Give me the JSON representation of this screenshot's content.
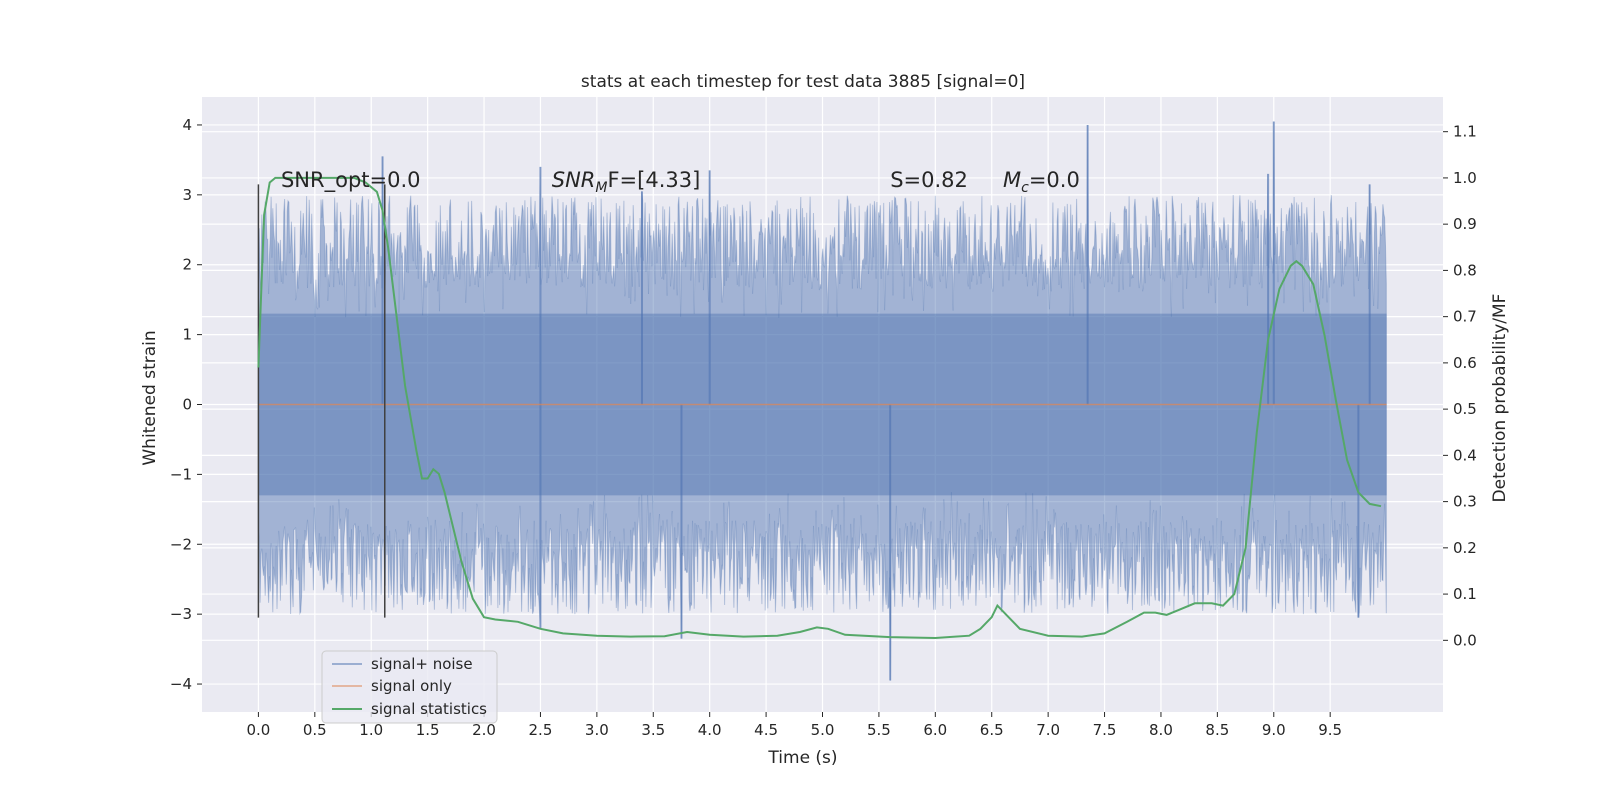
{
  "chart_data": {
    "type": "line",
    "title": "stats at each timestep for test data 3885 [signal=0]",
    "xlabel": "Time (s)",
    "ylabel": "Whitened strain",
    "y2label": "Detection probability/MF",
    "xlim": [
      -0.5,
      10.5
    ],
    "ylim": [
      -4.4,
      4.4
    ],
    "y2lim": [
      -0.155,
      1.175
    ],
    "x_ticks": [
      0.0,
      0.5,
      1.0,
      1.5,
      2.0,
      2.5,
      3.0,
      3.5,
      4.0,
      4.5,
      5.0,
      5.5,
      6.0,
      6.5,
      7.0,
      7.5,
      8.0,
      8.5,
      9.0,
      9.5
    ],
    "x_tick_labels": [
      "0.0",
      "0.5",
      "1.0",
      "1.5",
      "2.0",
      "2.5",
      "3.0",
      "3.5",
      "4.0",
      "4.5",
      "5.0",
      "5.5",
      "6.0",
      "6.5",
      "7.0",
      "7.5",
      "8.0",
      "8.5",
      "9.0",
      "9.5"
    ],
    "y_ticks": [
      -4,
      -3,
      -2,
      -1,
      0,
      1,
      2,
      3,
      4
    ],
    "y_tick_labels": [
      "−4",
      "−3",
      "−2",
      "−1",
      "0",
      "1",
      "2",
      "3",
      "4"
    ],
    "y2_ticks": [
      0.0,
      0.1,
      0.2,
      0.3,
      0.4,
      0.5,
      0.6,
      0.7,
      0.8,
      0.9,
      1.0,
      1.1
    ],
    "y2_tick_labels": [
      "0.0",
      "0.1",
      "0.2",
      "0.3",
      "0.4",
      "0.5",
      "0.6",
      "0.7",
      "0.8",
      "0.9",
      "1.0",
      "1.1"
    ],
    "grid": true,
    "legend_position": "lower-left",
    "series": [
      {
        "name": "signal+ noise",
        "axis": "left",
        "color": "#4c72b0",
        "style": "noise band",
        "x_range": [
          0.0,
          10.0
        ],
        "core_range": [
          -1.3,
          1.3
        ],
        "envelope_range": [
          -3.0,
          3.0
        ],
        "notable_peaks": [
          {
            "x": 1.1,
            "y": 3.55
          },
          {
            "x": 2.5,
            "y": 3.4
          },
          {
            "x": 3.4,
            "y": 3.05
          },
          {
            "x": 4.0,
            "y": 3.35
          },
          {
            "x": 7.35,
            "y": 4.0
          },
          {
            "x": 8.95,
            "y": 3.3
          },
          {
            "x": 9.0,
            "y": 4.05
          },
          {
            "x": 9.85,
            "y": 3.15
          }
        ],
        "notable_troughs": [
          {
            "x": 2.5,
            "y": -3.2
          },
          {
            "x": 3.75,
            "y": -3.35
          },
          {
            "x": 5.6,
            "y": -3.95
          },
          {
            "x": 9.75,
            "y": -3.05
          }
        ]
      },
      {
        "name": "signal only",
        "axis": "left",
        "color": "#dd8452",
        "x": [
          0.0,
          10.0
        ],
        "y": [
          0.0,
          0.0
        ]
      },
      {
        "name": "signal statistics",
        "axis": "right",
        "color": "#55a868",
        "x": [
          0.0,
          0.05,
          0.1,
          0.15,
          0.2,
          0.3,
          0.5,
          0.7,
          0.85,
          0.95,
          1.05,
          1.1,
          1.15,
          1.2,
          1.3,
          1.4,
          1.45,
          1.5,
          1.55,
          1.6,
          1.65,
          1.7,
          1.8,
          1.9,
          2.0,
          2.1,
          2.3,
          2.5,
          2.7,
          3.0,
          3.3,
          3.6,
          3.8,
          4.0,
          4.3,
          4.6,
          4.8,
          4.95,
          5.05,
          5.2,
          5.6,
          6.0,
          6.3,
          6.4,
          6.5,
          6.55,
          6.65,
          6.75,
          7.0,
          7.3,
          7.5,
          7.7,
          7.85,
          7.95,
          8.05,
          8.15,
          8.3,
          8.45,
          8.55,
          8.65,
          8.75,
          8.85,
          8.95,
          9.05,
          9.15,
          9.2,
          9.25,
          9.35,
          9.45,
          9.55,
          9.65,
          9.75,
          9.85,
          9.95
        ],
        "y": [
          0.59,
          0.92,
          0.99,
          1.0,
          1.0,
          1.0,
          1.0,
          1.0,
          1.0,
          0.99,
          0.97,
          0.93,
          0.85,
          0.75,
          0.55,
          0.41,
          0.35,
          0.35,
          0.37,
          0.36,
          0.32,
          0.27,
          0.17,
          0.09,
          0.05,
          0.045,
          0.04,
          0.025,
          0.015,
          0.01,
          0.008,
          0.009,
          0.018,
          0.012,
          0.008,
          0.01,
          0.018,
          0.028,
          0.025,
          0.012,
          0.007,
          0.005,
          0.01,
          0.025,
          0.05,
          0.075,
          0.05,
          0.025,
          0.01,
          0.008,
          0.015,
          0.04,
          0.06,
          0.06,
          0.055,
          0.065,
          0.08,
          0.08,
          0.075,
          0.1,
          0.2,
          0.45,
          0.65,
          0.76,
          0.81,
          0.82,
          0.81,
          0.77,
          0.66,
          0.52,
          0.39,
          0.32,
          0.295,
          0.29
        ]
      }
    ],
    "vertical_markers": [
      {
        "x": 0.0,
        "y_range": [
          -3.05,
          3.15
        ],
        "color": "#404040"
      },
      {
        "x": 1.12,
        "y_range": [
          -3.05,
          3.15
        ],
        "color": "#404040"
      }
    ],
    "annotations": [
      {
        "text": "SNR_opt=0.0",
        "x": 0.2,
        "y": 3.2
      },
      {
        "text": "SNR",
        "sub": "M",
        "after": "F=[4.33]",
        "x": 2.6,
        "y": 3.2
      },
      {
        "text": "S=0.82",
        "x": 5.6,
        "y": 3.2
      },
      {
        "text": "M",
        "sub": "c",
        "after": "=0.0",
        "x": 6.6,
        "y": 3.2
      }
    ]
  }
}
